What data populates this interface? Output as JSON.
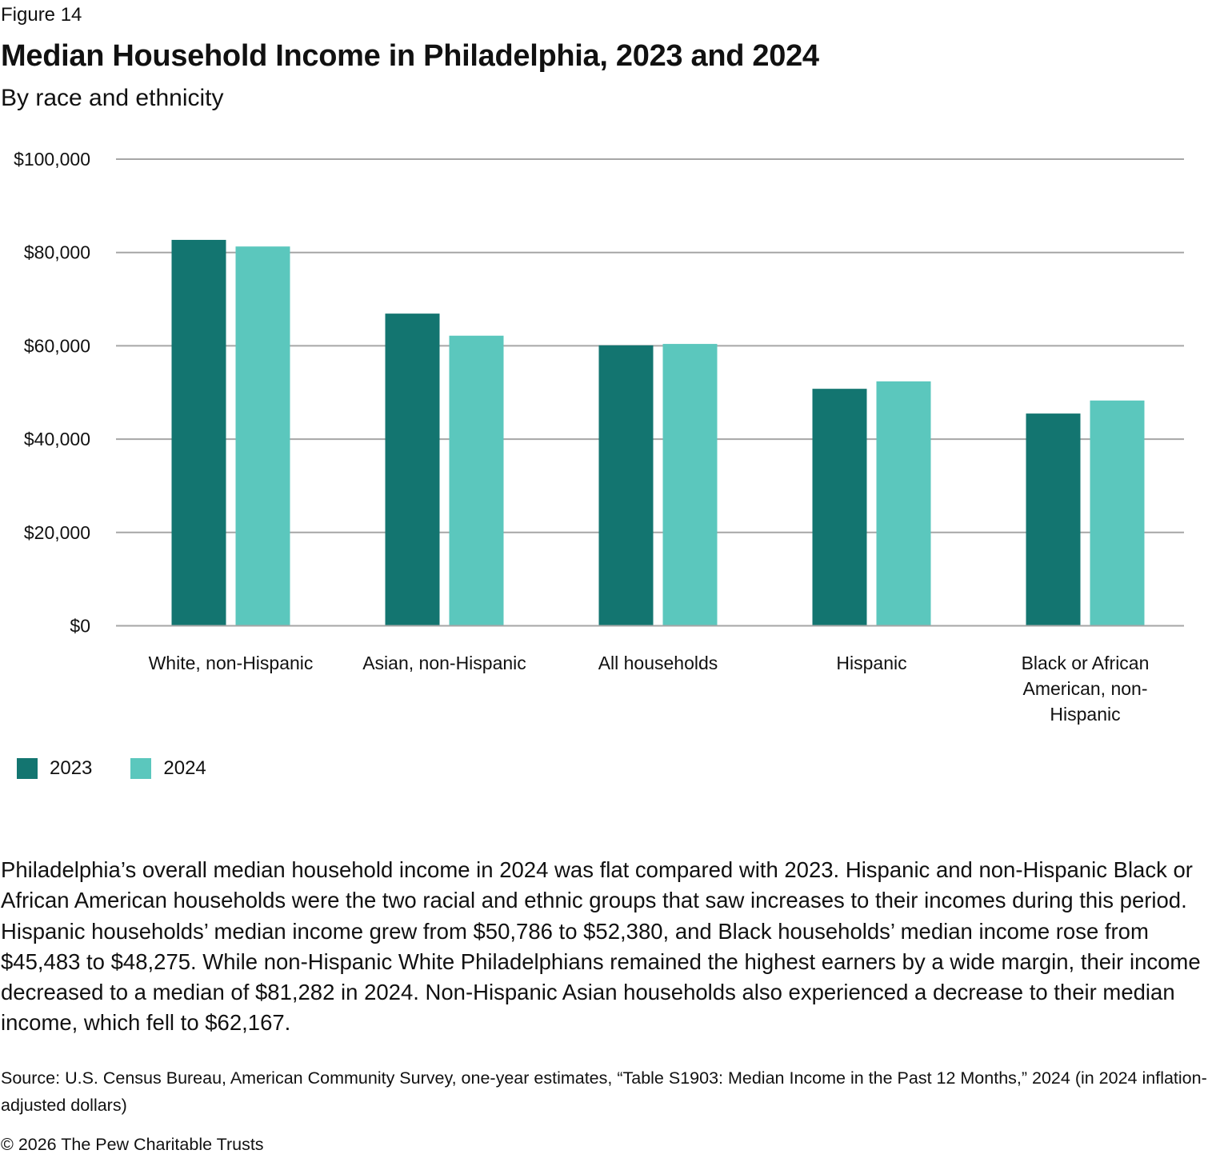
{
  "figure_label": "Figure 14",
  "title": "Median Household Income in Philadelphia, 2023 and 2024",
  "subtitle": "By race and ethnicity",
  "colors": {
    "2023": "#137570",
    "2024": "#5bc7bd",
    "gridline": "#a6a6a6"
  },
  "chart_data": {
    "type": "bar",
    "title": "Median Household Income in Philadelphia, 2023 and 2024",
    "subtitle": "By race and ethnicity",
    "xlabel": "",
    "ylabel": "",
    "ylim": [
      0,
      100000
    ],
    "yticks": [
      0,
      20000,
      40000,
      60000,
      80000,
      100000
    ],
    "ytick_labels": [
      "$0",
      "$20,000",
      "$40,000",
      "$60,000",
      "$80,000",
      "$100,000"
    ],
    "grid": true,
    "legend_position": "bottom-left",
    "categories": [
      [
        "White, non-Hispanic"
      ],
      [
        "Asian, non-Hispanic"
      ],
      [
        "All households"
      ],
      [
        "Hispanic"
      ],
      [
        "Black or African",
        "American, non-",
        "Hispanic"
      ]
    ],
    "series": [
      {
        "name": "2023",
        "color": "#137570",
        "values": [
          82700,
          66900,
          60100,
          50786,
          45483
        ]
      },
      {
        "name": "2024",
        "color": "#5bc7bd",
        "values": [
          81282,
          62167,
          60400,
          52380,
          48275
        ]
      }
    ]
  },
  "legend": [
    {
      "label": "2023",
      "color": "#137570"
    },
    {
      "label": "2024",
      "color": "#5bc7bd"
    }
  ],
  "body_text": "Philadelphia’s overall median household income in 2024 was flat compared with 2023. Hispanic and non-Hispanic Black or African American households were the two racial and ethnic groups that saw increases to their incomes during this period. Hispanic households’ median income grew from $50,786 to $52,380, and Black households’ median income rose from $45,483 to $48,275. While non-Hispanic White Philadelphians remained the highest earners by a wide margin, their income decreased to a median of $81,282 in 2024. Non-Hispanic Asian households also experienced a decrease to their median income, which fell to $62,167.",
  "source": "Source: U.S. Census Bureau, American Community Survey, one-year estimates, “Table S1903: Median Income in the Past 12 Months,” 2024 (in 2024 inflation-adjusted dollars)",
  "copyright": "© 2026 The Pew Charitable Trusts"
}
